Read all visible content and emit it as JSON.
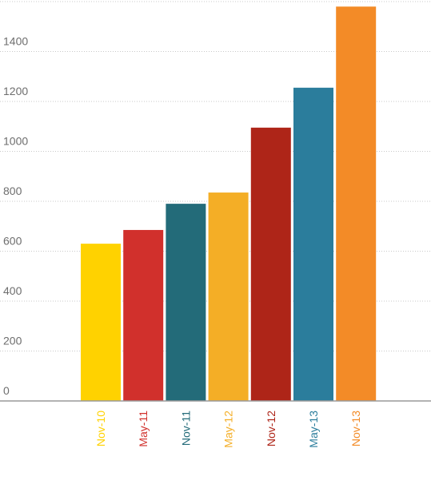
{
  "chart_data": {
    "type": "bar",
    "categories": [
      "Nov-10",
      "May-11",
      "Nov-11",
      "May-12",
      "Nov-12",
      "May-13",
      "Nov-13"
    ],
    "values": [
      630,
      685,
      790,
      835,
      1095,
      1255,
      1580
    ],
    "colors": [
      "#FFD200",
      "#D1302C",
      "#236B79",
      "#F4AE26",
      "#AE2518",
      "#2B7D9C",
      "#F38B27"
    ],
    "y_ticks": [
      0,
      200,
      400,
      600,
      800,
      1000,
      1200,
      1400
    ],
    "ylim": [
      0,
      1600
    ],
    "grid": true,
    "legend": "none",
    "title": "",
    "xlabel": "",
    "ylabel": ""
  }
}
